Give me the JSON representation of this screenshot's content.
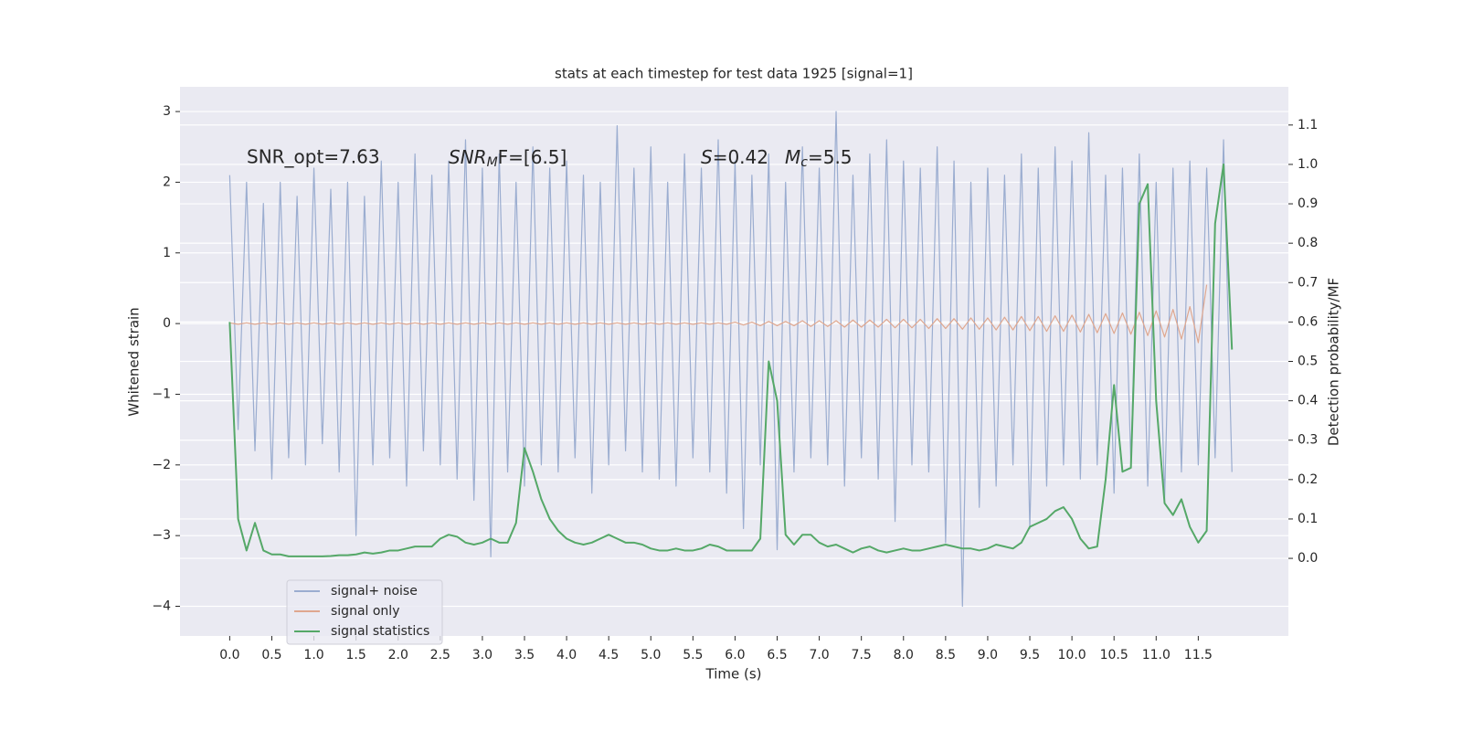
{
  "chart_data": {
    "type": "line",
    "title": "stats at each timestep for test data 1925 [signal=1]",
    "xlabel": "Time (s)",
    "ylabel": "Whitened strain",
    "y2label": "Detection probability/MF",
    "annotations": [
      {
        "text": "SNR_opt=7.63"
      },
      {
        "base": "SNR",
        "sub": "M",
        "rest": "F=[6.5]"
      },
      {
        "base": "S",
        "rest": "=0.42"
      },
      {
        "base": "M",
        "sub": "c",
        "rest": "=5.5"
      }
    ],
    "grid": true,
    "legend": "lower left",
    "xlim": [
      -0.59,
      12.57
    ],
    "ylim": [
      -4.42,
      3.35
    ],
    "y2lim": [
      -0.197,
      1.197
    ],
    "xticks": [
      {
        "value": 0,
        "label": "0.0"
      },
      0.5,
      {
        "value": 1,
        "label": "1.0"
      },
      1.5,
      {
        "value": 2,
        "label": "2.0"
      },
      2.5,
      {
        "value": 3,
        "label": "3.0"
      },
      3.5,
      {
        "value": 4,
        "label": "4.0"
      },
      4.5,
      {
        "value": 5,
        "label": "5.0"
      },
      5.5,
      {
        "value": 6,
        "label": "6.0"
      },
      6.5,
      {
        "value": 7,
        "label": "7.0"
      },
      7.5,
      {
        "value": 8,
        "label": "8.0"
      },
      8.5,
      {
        "value": 9,
        "label": "9.0"
      },
      9.5,
      {
        "value": 10,
        "label": "10.0"
      },
      10.5,
      {
        "value": 11,
        "label": "11.0"
      },
      11.5
    ],
    "yticks": [
      {
        "value": -4,
        "label": "−4"
      },
      {
        "value": -3,
        "label": "−3"
      },
      {
        "value": -2,
        "label": "−2"
      },
      {
        "value": -1,
        "label": "−1"
      },
      0,
      1,
      2,
      3
    ],
    "y2ticks": [
      {
        "value": 0,
        "label": "0.0"
      },
      0.1,
      0.2,
      0.3,
      0.4,
      0.5,
      0.6,
      0.7,
      0.8,
      0.9,
      {
        "value": 1,
        "label": "1.0"
      },
      1.1
    ],
    "x": [
      0,
      0.1,
      0.2,
      0.3,
      0.4,
      0.5,
      0.6,
      0.7,
      0.8,
      0.9,
      1,
      1.1,
      1.2,
      1.3,
      1.4,
      1.5,
      1.6,
      1.7,
      1.8,
      1.9,
      2,
      2.1,
      2.2,
      2.3,
      2.4,
      2.5,
      2.6,
      2.7,
      2.8,
      2.9,
      3,
      3.1,
      3.2,
      3.3,
      3.4,
      3.5,
      3.6,
      3.7,
      3.8,
      3.9,
      4,
      4.1,
      4.2,
      4.3,
      4.4,
      4.5,
      4.6,
      4.7,
      4.8,
      4.9,
      5,
      5.1,
      5.2,
      5.3,
      5.4,
      5.5,
      5.6,
      5.7,
      5.8,
      5.9,
      6,
      6.1,
      6.2,
      6.3,
      6.4,
      6.5,
      6.6,
      6.7,
      6.8,
      6.9,
      7,
      7.1,
      7.2,
      7.3,
      7.4,
      7.5,
      7.6,
      7.7,
      7.8,
      7.9,
      8,
      8.1,
      8.2,
      8.3,
      8.4,
      8.5,
      8.6,
      8.7,
      8.8,
      8.9,
      9,
      9.1,
      9.2,
      9.3,
      9.4,
      9.5,
      9.6,
      9.7,
      9.8,
      9.9,
      10,
      10.1,
      10.2,
      10.3,
      10.4,
      10.5,
      10.6,
      10.7,
      10.8,
      10.9,
      11,
      11.1,
      11.2,
      11.3,
      11.4,
      11.5,
      11.6,
      11.7,
      11.8,
      11.9
    ],
    "series": [
      {
        "name": "signal+ noise",
        "color": "#9badd0",
        "values": [
          2.1,
          -1.5,
          2.0,
          -1.8,
          1.7,
          -2.2,
          2.0,
          -1.9,
          1.8,
          -2.0,
          2.2,
          -1.7,
          1.9,
          -2.1,
          2.0,
          -3.0,
          1.8,
          -2.0,
          2.3,
          -1.9,
          2.0,
          -2.3,
          2.4,
          -1.8,
          2.1,
          -2.0,
          2.3,
          -2.2,
          2.6,
          -2.5,
          2.2,
          -3.3,
          2.4,
          -2.1,
          2.0,
          -2.3,
          2.5,
          -2.0,
          2.2,
          -2.1,
          2.3,
          -1.9,
          2.1,
          -2.4,
          2.0,
          -2.0,
          2.8,
          -1.8,
          2.2,
          -2.1,
          2.5,
          -2.2,
          2.0,
          -2.3,
          2.4,
          -1.9,
          2.2,
          -2.1,
          2.6,
          -2.4,
          2.3,
          -2.9,
          2.1,
          -2.0,
          2.4,
          -3.2,
          2.0,
          -2.1,
          2.5,
          -1.9,
          2.2,
          -2.0,
          3.0,
          -2.3,
          2.1,
          -1.9,
          2.4,
          -2.2,
          2.6,
          -2.8,
          2.3,
          -2.0,
          2.2,
          -2.1,
          2.5,
          -3.1,
          2.3,
          -4.0,
          2.0,
          -2.6,
          2.2,
          -2.3,
          2.1,
          -2.0,
          2.4,
          -2.9,
          2.2,
          -2.3,
          2.5,
          -2.0,
          2.3,
          -2.2,
          2.7,
          -2.0,
          2.1,
          -2.4,
          2.2,
          -2.0,
          2.4,
          -2.3,
          2.0,
          -2.5,
          2.2,
          -2.1,
          2.3,
          -2.0,
          2.2,
          -1.9,
          2.6,
          -2.1
        ]
      },
      {
        "name": "signal only",
        "color": "#dfa78f",
        "values": [
          0.01,
          -0.01,
          0.01,
          -0.01,
          0.01,
          -0.01,
          0.01,
          -0.01,
          0.01,
          -0.01,
          0.01,
          -0.01,
          0.01,
          -0.01,
          0.01,
          -0.01,
          0.01,
          -0.01,
          0.01,
          -0.01,
          0.01,
          -0.01,
          0.01,
          -0.01,
          0.01,
          -0.01,
          0.01,
          -0.01,
          0.01,
          -0.01,
          0.01,
          -0.01,
          0.01,
          -0.01,
          0.01,
          -0.01,
          0.01,
          -0.01,
          0.01,
          -0.01,
          0.01,
          -0.01,
          0.01,
          -0.01,
          0.01,
          -0.01,
          0.01,
          -0.01,
          0.01,
          -0.01,
          0.01,
          -0.01,
          0.01,
          -0.01,
          0.01,
          -0.01,
          0.01,
          -0.01,
          0.01,
          -0.01,
          0.02,
          -0.02,
          0.02,
          -0.03,
          0.03,
          -0.03,
          0.03,
          -0.03,
          0.04,
          -0.04,
          0.04,
          -0.04,
          0.04,
          -0.05,
          0.05,
          -0.05,
          0.05,
          -0.05,
          0.06,
          -0.06,
          0.06,
          -0.06,
          0.06,
          -0.07,
          0.07,
          -0.07,
          0.07,
          -0.08,
          0.08,
          -0.08,
          0.08,
          -0.09,
          0.09,
          -0.09,
          0.1,
          -0.1,
          0.1,
          -0.11,
          0.11,
          -0.11,
          0.12,
          -0.12,
          0.13,
          -0.13,
          0.14,
          -0.14,
          0.15,
          -0.15,
          0.16,
          -0.17,
          0.18,
          -0.19,
          0.2,
          -0.22,
          0.24,
          -0.27,
          0.55,
          null,
          null,
          null
        ]
      },
      {
        "name": "signal statistics",
        "color": "#55a868",
        "axis": "y2",
        "values": [
          0.6,
          0.1,
          0.02,
          0.09,
          0.02,
          0.01,
          0.01,
          0.005,
          0.005,
          0.005,
          0.005,
          0.005,
          0.006,
          0.008,
          0.008,
          0.01,
          0.015,
          0.012,
          0.015,
          0.02,
          0.02,
          0.025,
          0.03,
          0.03,
          0.03,
          0.05,
          0.06,
          0.055,
          0.04,
          0.035,
          0.04,
          0.05,
          0.04,
          0.04,
          0.09,
          0.28,
          0.22,
          0.15,
          0.1,
          0.07,
          0.05,
          0.04,
          0.035,
          0.04,
          0.05,
          0.06,
          0.05,
          0.04,
          0.04,
          0.035,
          0.025,
          0.02,
          0.02,
          0.025,
          0.02,
          0.02,
          0.025,
          0.035,
          0.03,
          0.02,
          0.02,
          0.02,
          0.02,
          0.05,
          0.5,
          0.4,
          0.06,
          0.035,
          0.06,
          0.06,
          0.04,
          0.03,
          0.035,
          0.025,
          0.015,
          0.025,
          0.03,
          0.02,
          0.015,
          0.02,
          0.025,
          0.02,
          0.02,
          0.025,
          0.03,
          0.035,
          0.03,
          0.025,
          0.025,
          0.02,
          0.025,
          0.035,
          0.03,
          0.025,
          0.04,
          0.08,
          0.09,
          0.1,
          0.12,
          0.13,
          0.1,
          0.05,
          0.025,
          0.03,
          0.2,
          0.44,
          0.22,
          0.23,
          0.9,
          0.95,
          0.4,
          0.14,
          0.11,
          0.15,
          0.08,
          0.04,
          0.07,
          0.85,
          1.0,
          0.53
        ]
      }
    ]
  }
}
